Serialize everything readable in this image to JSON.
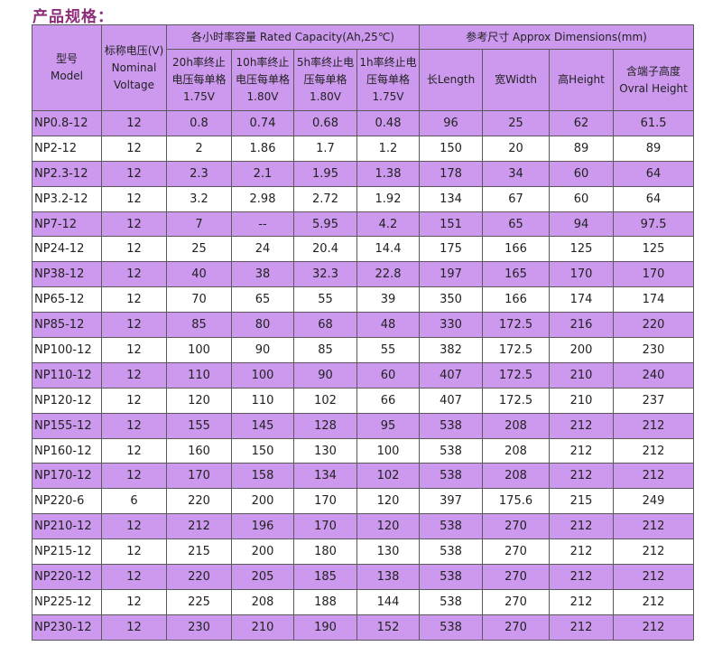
{
  "title": "产品规格：",
  "headers": {
    "model": [
      "型号",
      "Model"
    ],
    "voltage": [
      "标称电压(V)",
      "Nominal",
      "Voltage"
    ],
    "capacity_group": "各小时率容量 Rated Capacity(Ah,25℃)",
    "dimension_group": "参考尺寸 Approx Dimensions(mm)",
    "capacity": [
      [
        "20h率终止",
        "电压每单格",
        "1.75V"
      ],
      [
        "10h率终止",
        "电压每单格",
        "1.80V"
      ],
      [
        "5h率终止电",
        "压每单格",
        "1.80V"
      ],
      [
        "1h率终止电",
        "压每单格",
        "1.75V"
      ]
    ],
    "dimensions": [
      [
        "长Length"
      ],
      [
        "宽Width"
      ],
      [
        "高Height"
      ],
      [
        "含端子高度",
        "Ovral Height"
      ]
    ]
  },
  "rows": [
    [
      "NP0.8-12",
      "12",
      "0.8",
      "0.74",
      "0.68",
      "0.48",
      "96",
      "25",
      "62",
      "61.5"
    ],
    [
      "NP2-12",
      "12",
      "2",
      "1.86",
      "1.7",
      "1.2",
      "150",
      "20",
      "89",
      "89"
    ],
    [
      "NP2.3-12",
      "12",
      "2.3",
      "2.1",
      "1.95",
      "1.38",
      "178",
      "34",
      "60",
      "64"
    ],
    [
      "NP3.2-12",
      "12",
      "3.2",
      "2.98",
      "2.72",
      "1.92",
      "134",
      "67",
      "60",
      "64"
    ],
    [
      "NP7-12",
      "12",
      "7",
      "--",
      "5.95",
      "4.2",
      "151",
      "65",
      "94",
      "97.5"
    ],
    [
      "NP24-12",
      "12",
      "25",
      "24",
      "20.4",
      "14.4",
      "175",
      "166",
      "125",
      "125"
    ],
    [
      "NP38-12",
      "12",
      "40",
      "38",
      "32.3",
      "22.8",
      "197",
      "165",
      "170",
      "170"
    ],
    [
      "NP65-12",
      "12",
      "70",
      "65",
      "55",
      "39",
      "350",
      "166",
      "174",
      "174"
    ],
    [
      "NP85-12",
      "12",
      "85",
      "80",
      "68",
      "48",
      "330",
      "172.5",
      "216",
      "220"
    ],
    [
      "NP100-12",
      "12",
      "100",
      "90",
      "85",
      "55",
      "382",
      "172.5",
      "200",
      "230"
    ],
    [
      "NP110-12",
      "12",
      "110",
      "100",
      "90",
      "60",
      "407",
      "172.5",
      "210",
      "240"
    ],
    [
      "NP120-12",
      "12",
      "120",
      "110",
      "102",
      "66",
      "407",
      "172.5",
      "210",
      "237"
    ],
    [
      "NP155-12",
      "12",
      "155",
      "145",
      "128",
      "95",
      "538",
      "208",
      "212",
      "212"
    ],
    [
      "NP160-12",
      "12",
      "160",
      "150",
      "130",
      "100",
      "538",
      "208",
      "212",
      "212"
    ],
    [
      "NP170-12",
      "12",
      "170",
      "158",
      "134",
      "102",
      "538",
      "208",
      "212",
      "212"
    ],
    [
      "NP220-6",
      "6",
      "220",
      "200",
      "170",
      "120",
      "397",
      "175.6",
      "215",
      "249"
    ],
    [
      "NP210-12",
      "12",
      "212",
      "196",
      "170",
      "120",
      "538",
      "270",
      "212",
      "212"
    ],
    [
      "NP215-12",
      "12",
      "215",
      "200",
      "180",
      "130",
      "538",
      "270",
      "212",
      "212"
    ],
    [
      "NP220-12",
      "12",
      "220",
      "205",
      "185",
      "138",
      "538",
      "270",
      "212",
      "212"
    ],
    [
      "NP225-12",
      "12",
      "225",
      "208",
      "188",
      "144",
      "538",
      "270",
      "212",
      "212"
    ],
    [
      "NP230-12",
      "12",
      "230",
      "210",
      "190",
      "152",
      "538",
      "270",
      "212",
      "212"
    ]
  ],
  "colors": {
    "title": "#8e2c7a",
    "row_stripe": "#cc99ee",
    "header_bg": "#cc99ee",
    "border": "#5a5a5a"
  }
}
